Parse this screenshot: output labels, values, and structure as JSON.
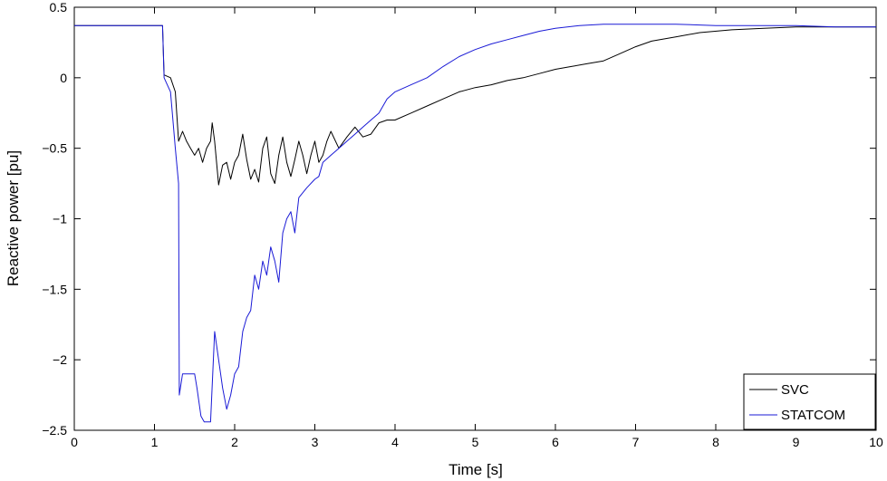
{
  "chart_data": {
    "type": "line",
    "title": "",
    "xlabel": "Time [s]",
    "ylabel": "Reactive power [pu]",
    "xlim": [
      0,
      10
    ],
    "ylim": [
      -2.5,
      0.5
    ],
    "xticks": [
      "0",
      "1",
      "2",
      "3",
      "4",
      "5",
      "6",
      "7",
      "8",
      "9",
      "10"
    ],
    "yticks": [
      "0.5",
      "0",
      "−0.5",
      "−1",
      "−1.5",
      "−2",
      "−2.5"
    ],
    "grid": false,
    "legend_position": "bottom-right",
    "series": [
      {
        "name": "SVC",
        "color": "#000000",
        "points": [
          [
            0,
            0.37
          ],
          [
            1.1,
            0.37
          ],
          [
            1.12,
            0.02
          ],
          [
            1.2,
            0.0
          ],
          [
            1.26,
            -0.1
          ],
          [
            1.3,
            -0.45
          ],
          [
            1.35,
            -0.38
          ],
          [
            1.4,
            -0.45
          ],
          [
            1.45,
            -0.5
          ],
          [
            1.5,
            -0.55
          ],
          [
            1.55,
            -0.5
          ],
          [
            1.6,
            -0.6
          ],
          [
            1.65,
            -0.5
          ],
          [
            1.7,
            -0.45
          ],
          [
            1.72,
            -0.32
          ],
          [
            1.75,
            -0.45
          ],
          [
            1.8,
            -0.76
          ],
          [
            1.85,
            -0.62
          ],
          [
            1.9,
            -0.6
          ],
          [
            1.95,
            -0.72
          ],
          [
            2.0,
            -0.6
          ],
          [
            2.05,
            -0.55
          ],
          [
            2.1,
            -0.4
          ],
          [
            2.15,
            -0.58
          ],
          [
            2.2,
            -0.72
          ],
          [
            2.25,
            -0.65
          ],
          [
            2.3,
            -0.74
          ],
          [
            2.35,
            -0.5
          ],
          [
            2.4,
            -0.42
          ],
          [
            2.45,
            -0.68
          ],
          [
            2.5,
            -0.75
          ],
          [
            2.55,
            -0.55
          ],
          [
            2.6,
            -0.42
          ],
          [
            2.65,
            -0.6
          ],
          [
            2.7,
            -0.7
          ],
          [
            2.75,
            -0.58
          ],
          [
            2.8,
            -0.45
          ],
          [
            2.85,
            -0.55
          ],
          [
            2.9,
            -0.68
          ],
          [
            2.95,
            -0.55
          ],
          [
            3.0,
            -0.45
          ],
          [
            3.05,
            -0.6
          ],
          [
            3.1,
            -0.55
          ],
          [
            3.15,
            -0.45
          ],
          [
            3.2,
            -0.38
          ],
          [
            3.3,
            -0.5
          ],
          [
            3.4,
            -0.42
          ],
          [
            3.5,
            -0.35
          ],
          [
            3.6,
            -0.42
          ],
          [
            3.7,
            -0.4
          ],
          [
            3.8,
            -0.32
          ],
          [
            3.9,
            -0.3
          ],
          [
            4.0,
            -0.3
          ],
          [
            4.2,
            -0.25
          ],
          [
            4.4,
            -0.2
          ],
          [
            4.6,
            -0.15
          ],
          [
            4.8,
            -0.1
          ],
          [
            5.0,
            -0.07
          ],
          [
            5.2,
            -0.05
          ],
          [
            5.4,
            -0.02
          ],
          [
            5.6,
            0.0
          ],
          [
            5.8,
            0.03
          ],
          [
            6.0,
            0.06
          ],
          [
            6.2,
            0.08
          ],
          [
            6.4,
            0.1
          ],
          [
            6.6,
            0.12
          ],
          [
            6.8,
            0.17
          ],
          [
            7.0,
            0.22
          ],
          [
            7.2,
            0.26
          ],
          [
            7.5,
            0.29
          ],
          [
            7.8,
            0.32
          ],
          [
            8.2,
            0.34
          ],
          [
            8.6,
            0.35
          ],
          [
            9.0,
            0.36
          ],
          [
            9.5,
            0.36
          ],
          [
            10.0,
            0.36
          ]
        ]
      },
      {
        "name": "STATCOM",
        "color": "#1a1ad6",
        "points": [
          [
            0,
            0.37
          ],
          [
            1.1,
            0.37
          ],
          [
            1.12,
            0.0
          ],
          [
            1.2,
            -0.1
          ],
          [
            1.26,
            -0.5
          ],
          [
            1.3,
            -0.75
          ],
          [
            1.31,
            -2.25
          ],
          [
            1.35,
            -2.1
          ],
          [
            1.5,
            -2.1
          ],
          [
            1.53,
            -2.2
          ],
          [
            1.58,
            -2.4
          ],
          [
            1.62,
            -2.44
          ],
          [
            1.7,
            -2.44
          ],
          [
            1.75,
            -1.8
          ],
          [
            1.8,
            -2.0
          ],
          [
            1.85,
            -2.2
          ],
          [
            1.9,
            -2.35
          ],
          [
            1.95,
            -2.25
          ],
          [
            2.0,
            -2.1
          ],
          [
            2.05,
            -2.05
          ],
          [
            2.1,
            -1.8
          ],
          [
            2.15,
            -1.7
          ],
          [
            2.2,
            -1.65
          ],
          [
            2.25,
            -1.4
          ],
          [
            2.3,
            -1.5
          ],
          [
            2.35,
            -1.3
          ],
          [
            2.4,
            -1.4
          ],
          [
            2.45,
            -1.2
          ],
          [
            2.5,
            -1.3
          ],
          [
            2.55,
            -1.45
          ],
          [
            2.6,
            -1.1
          ],
          [
            2.65,
            -1.0
          ],
          [
            2.7,
            -0.95
          ],
          [
            2.75,
            -1.1
          ],
          [
            2.8,
            -0.85
          ],
          [
            2.9,
            -0.78
          ],
          [
            3.0,
            -0.72
          ],
          [
            3.05,
            -0.7
          ],
          [
            3.1,
            -0.6
          ],
          [
            3.2,
            -0.55
          ],
          [
            3.3,
            -0.5
          ],
          [
            3.4,
            -0.45
          ],
          [
            3.5,
            -0.4
          ],
          [
            3.6,
            -0.35
          ],
          [
            3.7,
            -0.3
          ],
          [
            3.8,
            -0.25
          ],
          [
            3.9,
            -0.15
          ],
          [
            4.0,
            -0.1
          ],
          [
            4.2,
            -0.05
          ],
          [
            4.4,
            0.0
          ],
          [
            4.6,
            0.08
          ],
          [
            4.8,
            0.15
          ],
          [
            5.0,
            0.2
          ],
          [
            5.2,
            0.24
          ],
          [
            5.4,
            0.27
          ],
          [
            5.6,
            0.3
          ],
          [
            5.8,
            0.33
          ],
          [
            6.0,
            0.35
          ],
          [
            6.3,
            0.37
          ],
          [
            6.6,
            0.38
          ],
          [
            7.0,
            0.38
          ],
          [
            7.5,
            0.38
          ],
          [
            8.0,
            0.37
          ],
          [
            8.5,
            0.37
          ],
          [
            9.0,
            0.37
          ],
          [
            9.5,
            0.36
          ],
          [
            10.0,
            0.36
          ]
        ]
      }
    ]
  }
}
